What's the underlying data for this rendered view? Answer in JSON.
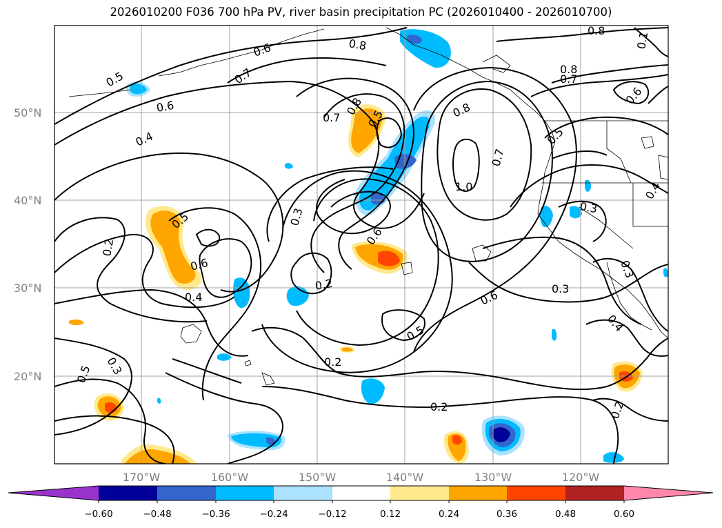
{
  "title": "2026010200 F036 700 hPa PV, river basin precipitation PC (2026010400 - 2026010700)",
  "map": {
    "lat_labels": [
      "50°N",
      "40°N",
      "30°N",
      "20°N"
    ],
    "lon_labels": [
      "170°W",
      "160°W",
      "150°W",
      "140°W",
      "130°W",
      "120°W"
    ]
  },
  "contour_labels": [
    "0.8",
    "0.1",
    "0.8",
    "0.6",
    "0.7",
    "0.5",
    "0.8",
    "0.7",
    "0.6",
    "0.6",
    "0.7",
    "0.8",
    "0.5",
    "0.8",
    "0.5",
    "0.4",
    "0.7",
    "1.0",
    "0.3",
    "0.3",
    "0.4",
    "0.5",
    "0.2",
    "0.6",
    "0.6",
    "0.3",
    "0.4",
    "0.2",
    "0.6",
    "0.3",
    "0.4",
    "0.5",
    "0.3",
    "0.2",
    "0.5",
    "0.2",
    "0.2"
  ],
  "colorbar": {
    "colors": [
      "#9933cc",
      "#000099",
      "#3366cc",
      "#00bbff",
      "#aae2ff",
      "#ffffff",
      "#ffe98c",
      "#ffa500",
      "#ff4500",
      "#b22222",
      "#ff88aa"
    ],
    "tick_labels": [
      "−0.60",
      "−0.48",
      "−0.36",
      "−0.24",
      "−0.12",
      "0.12",
      "0.24",
      "0.36",
      "0.48",
      "0.60"
    ]
  },
  "colors": {
    "contour": "#000000",
    "gridline": "#a0a0a0",
    "tick_label": "#808080"
  }
}
